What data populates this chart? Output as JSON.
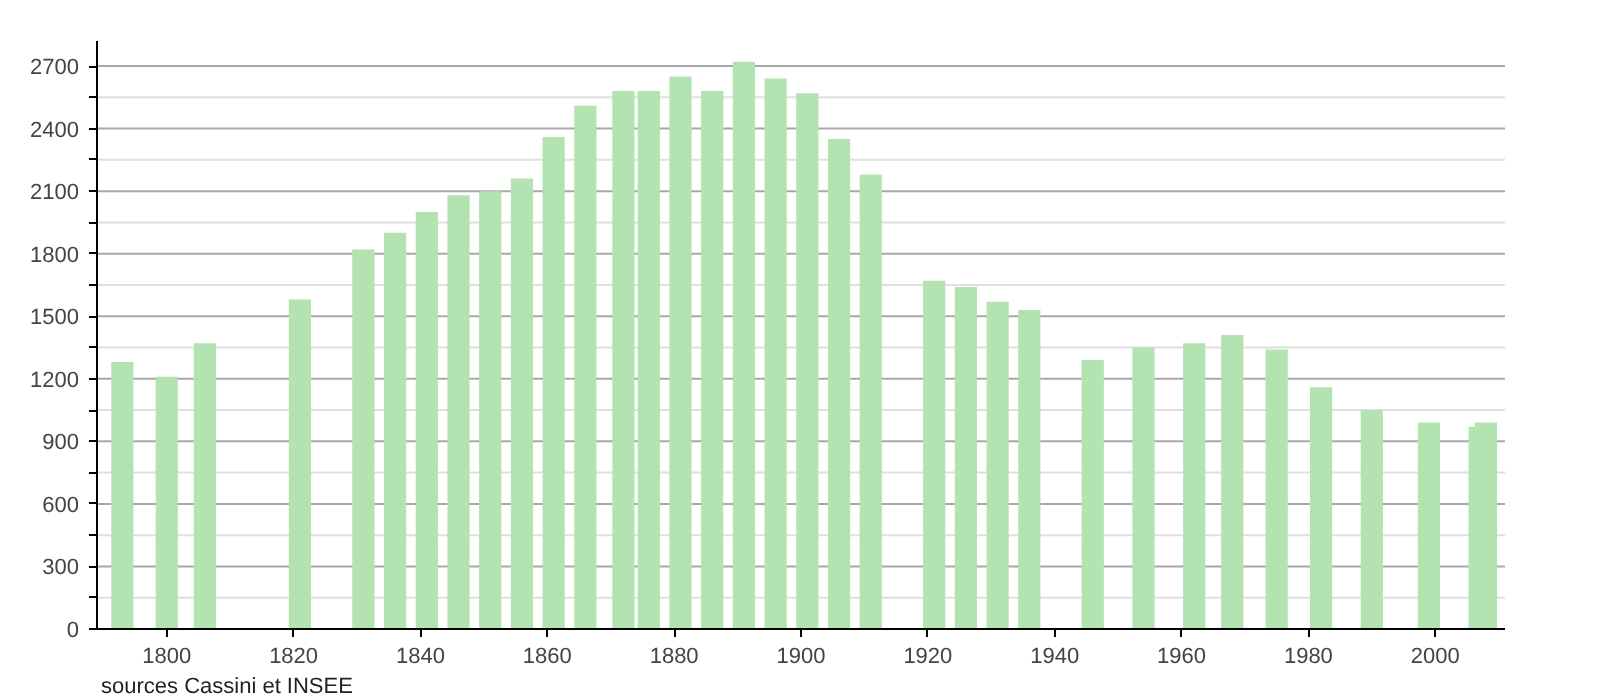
{
  "chart_data": {
    "type": "bar",
    "x": [
      1793,
      1800,
      1806,
      1821,
      1831,
      1836,
      1841,
      1846,
      1851,
      1856,
      1861,
      1866,
      1872,
      1876,
      1881,
      1886,
      1891,
      1896,
      1901,
      1906,
      1911,
      1921,
      1926,
      1931,
      1936,
      1946,
      1954,
      1962,
      1968,
      1975,
      1982,
      1990,
      1999,
      2007,
      2008
    ],
    "values": [
      1280,
      1210,
      1370,
      1580,
      1820,
      1900,
      2000,
      2080,
      2100,
      2160,
      2360,
      2510,
      2580,
      2580,
      2650,
      2580,
      2720,
      2640,
      2570,
      2350,
      2180,
      1670,
      1640,
      1570,
      1530,
      1290,
      1350,
      1370,
      1410,
      1340,
      1160,
      1050,
      990,
      970,
      990
    ],
    "color": "#b3e3b0",
    "xlim": [
      1789,
      2011
    ],
    "xticks": [
      1800,
      1820,
      1840,
      1860,
      1880,
      1900,
      1920,
      1940,
      1960,
      1980,
      2000
    ],
    "ylim": [
      0,
      2820
    ],
    "yticks": [
      0,
      {
        "value": 150,
        "label": null
      },
      300,
      {
        "value": 450,
        "label": null
      },
      600,
      {
        "value": 750,
        "label": null
      },
      900,
      {
        "value": 1050,
        "label": null
      },
      1200,
      {
        "value": 1350,
        "label": null
      },
      1500,
      {
        "value": 1650,
        "label": null
      },
      1800,
      {
        "value": 1950,
        "label": null
      },
      2100,
      {
        "value": 2250,
        "label": null
      },
      2400,
      {
        "value": 2550,
        "label": null
      },
      2700
    ],
    "grid": "y",
    "annotations": [
      "sources Cassini et INSEE"
    ]
  }
}
